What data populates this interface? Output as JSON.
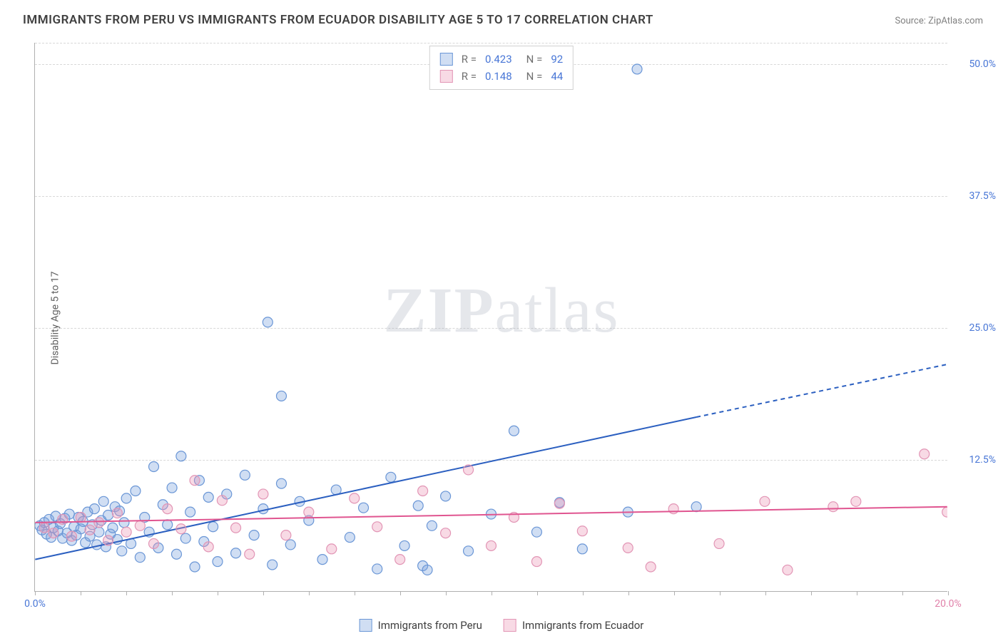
{
  "title": "IMMIGRANTS FROM PERU VS IMMIGRANTS FROM ECUADOR DISABILITY AGE 5 TO 17 CORRELATION CHART",
  "source_prefix": "Source: ",
  "source_name": "ZipAtlas.com",
  "y_axis_label": "Disability Age 5 to 17",
  "watermark_a": "ZIP",
  "watermark_b": "atlas",
  "chart": {
    "type": "scatter",
    "xlim": [
      0,
      20
    ],
    "ylim": [
      0,
      52
    ],
    "x_ticks": [
      0,
      1,
      2,
      3,
      4,
      5,
      6,
      7,
      8,
      9,
      10,
      11,
      12,
      13,
      14,
      15,
      16,
      17,
      18,
      19,
      20
    ],
    "x_tick_labels": {
      "0": "0.0%",
      "20": "20.0%"
    },
    "x_label_left_color": "#4876d6",
    "x_label_right_color": "#e07fa8",
    "y_gridlines": [
      12.5,
      25.0,
      37.5,
      50.0,
      52.0
    ],
    "y_tick_labels": [
      "12.5%",
      "25.0%",
      "37.5%",
      "50.0%"
    ],
    "y_tick_color": "#4876d6",
    "grid_color": "#d8d8d8",
    "background_color": "#ffffff",
    "marker_radius": 7,
    "marker_stroke_width": 1.2,
    "series": [
      {
        "name": "Immigrants from Peru",
        "fill": "rgba(120,160,220,0.35)",
        "stroke": "#6a96d6",
        "r_value": "0.423",
        "n_value": "92",
        "trend": {
          "x1": 0,
          "y1": 3.0,
          "x2": 14.5,
          "y2": 16.5,
          "x2_dash": 20,
          "y2_dash": 21.5,
          "color": "#2b5fc0",
          "width": 2
        },
        "points": [
          [
            0.1,
            6.2
          ],
          [
            0.15,
            5.8
          ],
          [
            0.2,
            6.5
          ],
          [
            0.25,
            5.4
          ],
          [
            0.3,
            6.8
          ],
          [
            0.35,
            5.1
          ],
          [
            0.4,
            6.0
          ],
          [
            0.45,
            7.1
          ],
          [
            0.5,
            5.7
          ],
          [
            0.55,
            6.4
          ],
          [
            0.6,
            5.0
          ],
          [
            0.65,
            6.9
          ],
          [
            0.7,
            5.5
          ],
          [
            0.75,
            7.3
          ],
          [
            0.8,
            4.8
          ],
          [
            0.85,
            6.1
          ],
          [
            0.9,
            5.3
          ],
          [
            0.95,
            7.0
          ],
          [
            1.0,
            5.9
          ],
          [
            1.05,
            6.6
          ],
          [
            1.1,
            4.6
          ],
          [
            1.15,
            7.5
          ],
          [
            1.2,
            5.2
          ],
          [
            1.25,
            6.3
          ],
          [
            1.3,
            7.8
          ],
          [
            1.35,
            4.4
          ],
          [
            1.4,
            5.6
          ],
          [
            1.45,
            6.7
          ],
          [
            1.5,
            8.5
          ],
          [
            1.55,
            4.2
          ],
          [
            1.6,
            7.2
          ],
          [
            1.65,
            5.4
          ],
          [
            1.7,
            6.0
          ],
          [
            1.75,
            8.0
          ],
          [
            1.8,
            4.9
          ],
          [
            1.85,
            7.6
          ],
          [
            1.9,
            3.8
          ],
          [
            1.95,
            6.5
          ],
          [
            2.0,
            8.8
          ],
          [
            2.1,
            4.5
          ],
          [
            2.2,
            9.5
          ],
          [
            2.3,
            3.2
          ],
          [
            2.4,
            7.0
          ],
          [
            2.5,
            5.6
          ],
          [
            2.6,
            11.8
          ],
          [
            2.7,
            4.1
          ],
          [
            2.8,
            8.2
          ],
          [
            2.9,
            6.3
          ],
          [
            3.0,
            9.8
          ],
          [
            3.1,
            3.5
          ],
          [
            3.2,
            12.8
          ],
          [
            3.3,
            5.0
          ],
          [
            3.4,
            7.5
          ],
          [
            3.5,
            2.3
          ],
          [
            3.6,
            10.5
          ],
          [
            3.7,
            4.7
          ],
          [
            3.8,
            8.9
          ],
          [
            3.9,
            6.1
          ],
          [
            4.0,
            2.8
          ],
          [
            4.2,
            9.2
          ],
          [
            4.4,
            3.6
          ],
          [
            4.6,
            11.0
          ],
          [
            4.8,
            5.3
          ],
          [
            5.0,
            7.8
          ],
          [
            5.1,
            25.5
          ],
          [
            5.2,
            2.5
          ],
          [
            5.4,
            10.2
          ],
          [
            5.6,
            4.4
          ],
          [
            5.8,
            8.5
          ],
          [
            5.4,
            18.5
          ],
          [
            6.0,
            6.7
          ],
          [
            6.3,
            3.0
          ],
          [
            6.6,
            9.6
          ],
          [
            6.9,
            5.1
          ],
          [
            7.2,
            7.9
          ],
          [
            7.5,
            2.1
          ],
          [
            7.8,
            10.8
          ],
          [
            8.1,
            4.3
          ],
          [
            8.4,
            8.1
          ],
          [
            8.7,
            6.2
          ],
          [
            8.5,
            2.4
          ],
          [
            8.6,
            2.0
          ],
          [
            9.0,
            9.0
          ],
          [
            9.5,
            3.8
          ],
          [
            10.0,
            7.3
          ],
          [
            10.5,
            15.2
          ],
          [
            11.0,
            5.6
          ],
          [
            11.5,
            8.4
          ],
          [
            12.0,
            4.0
          ],
          [
            13.0,
            7.5
          ],
          [
            13.2,
            49.5
          ],
          [
            14.5,
            8.0
          ]
        ]
      },
      {
        "name": "Immigrants from Ecuador",
        "fill": "rgba(235,150,180,0.35)",
        "stroke": "#e295b5",
        "r_value": "0.148",
        "n_value": "44",
        "trend": {
          "x1": 0,
          "y1": 6.5,
          "x2": 20,
          "y2": 8.0,
          "color": "#e05590",
          "width": 2
        },
        "points": [
          [
            0.2,
            6.0
          ],
          [
            0.4,
            5.5
          ],
          [
            0.6,
            6.8
          ],
          [
            0.8,
            5.2
          ],
          [
            1.0,
            7.0
          ],
          [
            1.2,
            5.8
          ],
          [
            1.4,
            6.5
          ],
          [
            1.6,
            4.8
          ],
          [
            1.8,
            7.4
          ],
          [
            2.0,
            5.6
          ],
          [
            2.3,
            6.2
          ],
          [
            2.6,
            4.5
          ],
          [
            2.9,
            7.8
          ],
          [
            3.2,
            5.9
          ],
          [
            3.5,
            10.5
          ],
          [
            3.8,
            4.2
          ],
          [
            4.1,
            8.6
          ],
          [
            4.4,
            6.0
          ],
          [
            4.7,
            3.5
          ],
          [
            5.0,
            9.2
          ],
          [
            5.5,
            5.3
          ],
          [
            6.0,
            7.5
          ],
          [
            6.5,
            4.0
          ],
          [
            7.0,
            8.8
          ],
          [
            7.5,
            6.1
          ],
          [
            8.0,
            3.0
          ],
          [
            8.5,
            9.5
          ],
          [
            9.0,
            5.5
          ],
          [
            9.5,
            11.5
          ],
          [
            10.0,
            4.3
          ],
          [
            10.5,
            7.0
          ],
          [
            11.0,
            2.8
          ],
          [
            11.5,
            8.3
          ],
          [
            12.0,
            5.7
          ],
          [
            13.0,
            4.1
          ],
          [
            13.5,
            2.3
          ],
          [
            14.0,
            7.8
          ],
          [
            15.0,
            4.5
          ],
          [
            16.0,
            8.5
          ],
          [
            16.5,
            2.0
          ],
          [
            17.5,
            8.0
          ],
          [
            18.0,
            8.5
          ],
          [
            19.5,
            13.0
          ],
          [
            20.0,
            7.5
          ]
        ]
      }
    ],
    "legend_top": {
      "r_label": "R =",
      "n_label": "N ="
    },
    "legend_bottom_labels": [
      "Immigrants from Peru",
      "Immigrants from Ecuador"
    ]
  }
}
